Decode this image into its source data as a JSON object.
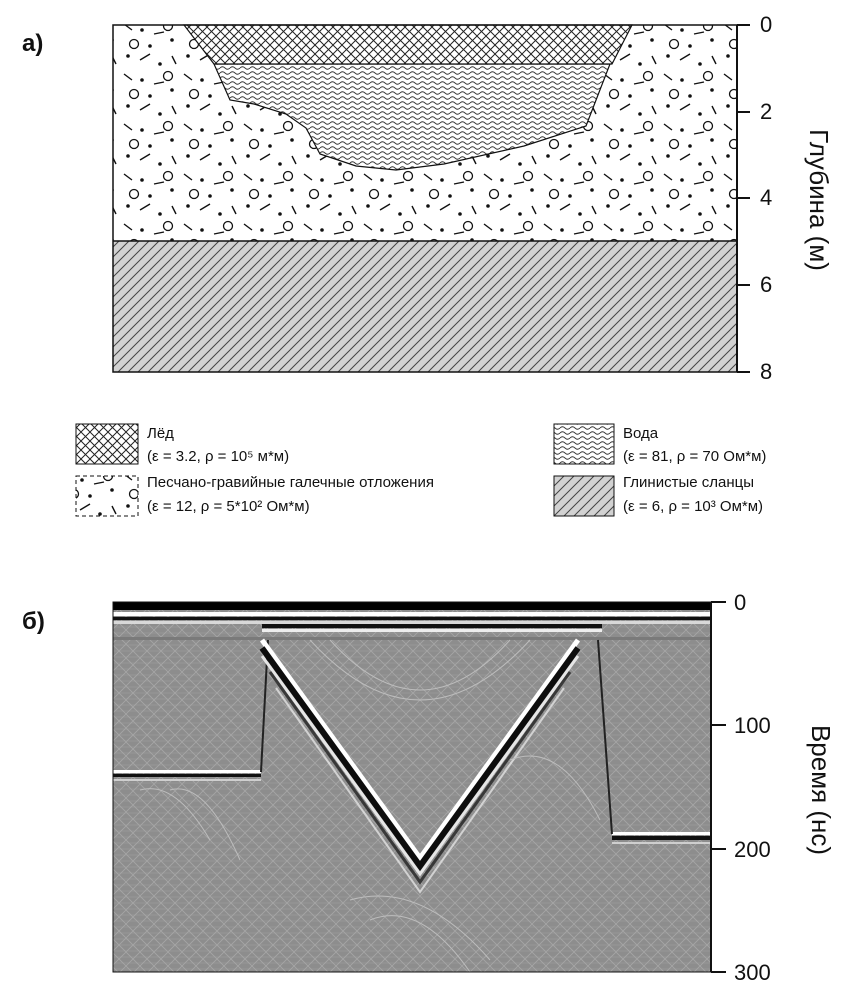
{
  "panel_a": {
    "label": "а)",
    "depth_axis": {
      "title": "Глубина (м)",
      "ticks": [
        "0",
        "2",
        "4",
        "6",
        "8"
      ]
    },
    "legend": [
      {
        "name": "Лёд",
        "params": "(ε = 3.2, ρ = 10⁵ м*м)",
        "pattern": "ice"
      },
      {
        "name": "Вода",
        "params": "(ε = 81, ρ = 70 Ом*м)",
        "pattern": "water"
      },
      {
        "name": "Песчано-гравийные галечные отложения",
        "params": "(ε = 12, ρ = 5*10² Ом*м)",
        "pattern": "gravel"
      },
      {
        "name": "Глинистые сланцы",
        "params": "(ε = 6, ρ = 10³ Ом*м)",
        "pattern": "shale"
      }
    ]
  },
  "panel_b": {
    "label": "б)",
    "time_axis": {
      "title": "Время (нс)",
      "ticks": [
        "0",
        "100",
        "200",
        "300"
      ]
    }
  }
}
